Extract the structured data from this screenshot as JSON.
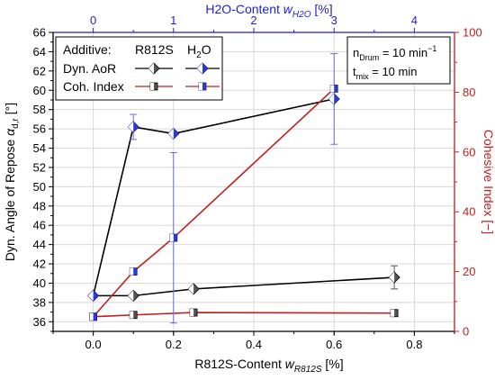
{
  "chart_data": {
    "type": "line",
    "axes": {
      "x_bottom": {
        "label_main": "R812S-Content ",
        "label_var": "w",
        "label_sub": "R812S",
        "label_unit": " [%]",
        "range": [
          -0.1,
          0.9
        ],
        "ticks": [
          0.0,
          0.2,
          0.4,
          0.6,
          0.8
        ],
        "tick_labels": [
          "0.0",
          "0.2",
          "0.4",
          "0.6",
          "0.8"
        ],
        "color": "#000000"
      },
      "x_top": {
        "label_main": "H2O-Content ",
        "label_var": "w",
        "label_sub": "H2O",
        "label_unit": " [%]",
        "range": [
          0,
          4
        ],
        "ticks": [
          0,
          1,
          2,
          3,
          4
        ],
        "tick_labels": [
          "0",
          "1",
          "2",
          "3",
          "4"
        ],
        "color": "#1f1fcf"
      },
      "y_left": {
        "label_main": "Dyn. Angle of Repose ",
        "label_var": "α",
        "label_sub": "d,r",
        "label_unit": " [°]",
        "range": [
          35,
          66
        ],
        "ticks": [
          36,
          38,
          40,
          42,
          44,
          46,
          48,
          50,
          52,
          54,
          56,
          58,
          60,
          62,
          64,
          66
        ],
        "tick_labels": [
          "36",
          "38",
          "40",
          "42",
          "44",
          "46",
          "48",
          "50",
          "52",
          "54",
          "56",
          "58",
          "60",
          "62",
          "64",
          "66"
        ],
        "color": "#000000"
      },
      "y_right": {
        "label": "Cohesive Index [−]",
        "range": [
          0,
          100
        ],
        "ticks": [
          0,
          20,
          40,
          60,
          80,
          100
        ],
        "tick_labels": [
          "0",
          "20",
          "40",
          "60",
          "80",
          "100"
        ],
        "color": "#c0201c"
      }
    },
    "series": [
      {
        "name": "R812S Dyn. AoR",
        "axis_x": "x_bottom",
        "axis_y": "y_left",
        "x": [
          0.0,
          0.1,
          0.25,
          0.75
        ],
        "y": [
          38.7,
          38.7,
          39.4,
          40.6
        ],
        "err": [
          0,
          0,
          0,
          1.2
        ],
        "line_color": "#000000",
        "marker": "diamond",
        "marker_color": "#555555"
      },
      {
        "name": "H2O Dyn. AoR",
        "axis_x": "x_top",
        "axis_y": "y_left",
        "x": [
          0,
          0.5,
          1.0,
          3.0
        ],
        "y": [
          38.7,
          56.2,
          55.5,
          59.1
        ],
        "err": [
          0,
          1.3,
          0,
          4.7
        ],
        "line_color": "#000000",
        "marker": "diamond",
        "marker_color": "#2a3cd6"
      },
      {
        "name": "R812S Coh. Index",
        "axis_x": "x_bottom",
        "axis_y": "y_right",
        "x": [
          0.0,
          0.1,
          0.25,
          0.75
        ],
        "y": [
          4.9,
          5.5,
          6.3,
          6.1
        ],
        "err": [
          0,
          0,
          0,
          0
        ],
        "line_color": "#c0201c",
        "marker": "square",
        "marker_color": "#555555"
      },
      {
        "name": "H2O Coh. Index",
        "axis_x": "x_top",
        "axis_y": "y_right",
        "x": [
          0,
          0.5,
          1.0,
          3.0
        ],
        "y": [
          4.9,
          20.0,
          31.3,
          81.2
        ],
        "err": [
          0,
          0,
          28.5,
          0
        ],
        "line_color": "#c0201c",
        "marker": "square",
        "marker_color": "#2a3cd6"
      }
    ],
    "legend": {
      "title": "Additive:",
      "col1": "R812S",
      "col2_main": "H",
      "col2_sub": "2",
      "col2_end": "O",
      "row1": "Dyn. AoR",
      "row2": "Coh. Index",
      "position": "top-left"
    },
    "annotation": {
      "line1_main": "n",
      "line1_sub": "Drum",
      "line1_rest": " = 10 min",
      "line1_sup": "−1",
      "line2_main": "t",
      "line2_sub": "mix",
      "line2_rest": " = 10 min",
      "position": "top-right"
    },
    "grid": true
  }
}
